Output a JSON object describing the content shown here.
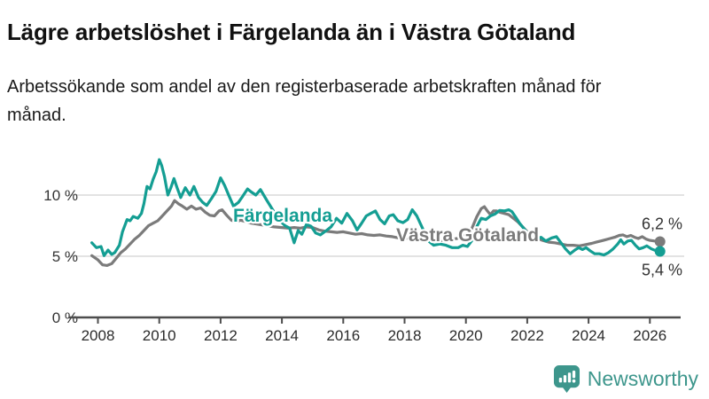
{
  "header": {
    "title": "Lägre arbetslöshet i Färgelanda än i Västra Götaland",
    "subtitle": "Arbetssökande som andel av den registerbaserade arbetskraften månad för månad."
  },
  "footer": {
    "brand": "Newsworthy",
    "brand_color": "#3d968c",
    "logo_icon": "speech-bubble-bar-chart"
  },
  "chart_data": {
    "type": "line",
    "title": "",
    "xlabel": "",
    "ylabel": "",
    "unit": "%",
    "grid": "horizontal",
    "legend_position": "inline-labels",
    "xlim": [
      2007.7,
      2027.1
    ],
    "ylim": [
      0,
      13.5
    ],
    "colors": {
      "axis": "#4d4d4d",
      "gridline": "#dadada",
      "tick_text": "#2b2b2b",
      "annotation_text": "#333333"
    },
    "yticks": [
      {
        "value": 0,
        "label": "0 %"
      },
      {
        "value": 5,
        "label": "5 %"
      },
      {
        "value": 10,
        "label": "10 %"
      }
    ],
    "xticks": [
      {
        "value": 2008,
        "label": "2008"
      },
      {
        "value": 2010,
        "label": "2010"
      },
      {
        "value": 2012,
        "label": "2012"
      },
      {
        "value": 2014,
        "label": "2014"
      },
      {
        "value": 2016,
        "label": "2016"
      },
      {
        "value": 2018,
        "label": "2018"
      },
      {
        "value": 2020,
        "label": "2020"
      },
      {
        "value": 2022,
        "label": "2022"
      },
      {
        "value": 2024,
        "label": "2024"
      },
      {
        "value": 2026,
        "label": "2026"
      }
    ],
    "series": [
      {
        "name": "Färgelanda",
        "color": "#149e93",
        "end_label": "5,4 %",
        "end_label_position": "below",
        "end_value": 5.4,
        "points": [
          [
            2007.8,
            6.1
          ],
          [
            2007.95,
            5.7
          ],
          [
            2008.1,
            5.8
          ],
          [
            2008.2,
            5.05
          ],
          [
            2008.33,
            5.5
          ],
          [
            2008.45,
            5.15
          ],
          [
            2008.55,
            5.3
          ],
          [
            2008.7,
            5.9
          ],
          [
            2008.8,
            7.0
          ],
          [
            2008.95,
            8.0
          ],
          [
            2009.05,
            7.9
          ],
          [
            2009.15,
            8.25
          ],
          [
            2009.3,
            8.1
          ],
          [
            2009.42,
            8.5
          ],
          [
            2009.5,
            9.3
          ],
          [
            2009.6,
            10.7
          ],
          [
            2009.7,
            10.5
          ],
          [
            2009.8,
            11.3
          ],
          [
            2009.9,
            11.9
          ],
          [
            2010.0,
            12.9
          ],
          [
            2010.08,
            12.4
          ],
          [
            2010.17,
            11.5
          ],
          [
            2010.28,
            10.0
          ],
          [
            2010.38,
            10.6
          ],
          [
            2010.48,
            11.35
          ],
          [
            2010.58,
            10.6
          ],
          [
            2010.7,
            9.8
          ],
          [
            2010.85,
            10.6
          ],
          [
            2011.0,
            10.0
          ],
          [
            2011.13,
            10.7
          ],
          [
            2011.28,
            9.8
          ],
          [
            2011.42,
            9.4
          ],
          [
            2011.55,
            9.15
          ],
          [
            2011.7,
            9.7
          ],
          [
            2011.85,
            10.3
          ],
          [
            2012.0,
            11.4
          ],
          [
            2012.13,
            10.8
          ],
          [
            2012.28,
            9.9
          ],
          [
            2012.42,
            9.1
          ],
          [
            2012.58,
            9.4
          ],
          [
            2012.72,
            9.9
          ],
          [
            2012.88,
            10.5
          ],
          [
            2013.0,
            10.25
          ],
          [
            2013.15,
            10.0
          ],
          [
            2013.3,
            10.45
          ],
          [
            2013.5,
            9.6
          ],
          [
            2013.7,
            8.8
          ],
          [
            2013.9,
            8.0
          ],
          [
            2014.1,
            7.5
          ],
          [
            2014.25,
            7.3
          ],
          [
            2014.4,
            6.1
          ],
          [
            2014.53,
            7.1
          ],
          [
            2014.65,
            6.8
          ],
          [
            2014.8,
            7.6
          ],
          [
            2014.95,
            7.45
          ],
          [
            2015.1,
            6.9
          ],
          [
            2015.25,
            6.75
          ],
          [
            2015.45,
            7.1
          ],
          [
            2015.6,
            7.4
          ],
          [
            2015.78,
            8.1
          ],
          [
            2015.95,
            7.7
          ],
          [
            2016.12,
            8.5
          ],
          [
            2016.3,
            7.9
          ],
          [
            2016.45,
            7.15
          ],
          [
            2016.6,
            7.7
          ],
          [
            2016.75,
            8.3
          ],
          [
            2016.9,
            8.5
          ],
          [
            2017.05,
            8.7
          ],
          [
            2017.2,
            8.0
          ],
          [
            2017.35,
            7.65
          ],
          [
            2017.5,
            8.3
          ],
          [
            2017.63,
            8.4
          ],
          [
            2017.78,
            7.9
          ],
          [
            2017.95,
            7.75
          ],
          [
            2018.1,
            8.0
          ],
          [
            2018.25,
            8.8
          ],
          [
            2018.4,
            8.3
          ],
          [
            2018.6,
            7.2
          ],
          [
            2018.8,
            6.2
          ],
          [
            2018.95,
            5.9
          ],
          [
            2019.15,
            6.0
          ],
          [
            2019.35,
            5.9
          ],
          [
            2019.55,
            5.7
          ],
          [
            2019.75,
            5.7
          ],
          [
            2019.9,
            5.9
          ],
          [
            2020.05,
            5.8
          ],
          [
            2020.2,
            6.3
          ],
          [
            2020.35,
            7.4
          ],
          [
            2020.5,
            8.1
          ],
          [
            2020.65,
            8.0
          ],
          [
            2020.8,
            8.3
          ],
          [
            2020.95,
            8.45
          ],
          [
            2021.1,
            8.75
          ],
          [
            2021.25,
            8.7
          ],
          [
            2021.4,
            8.8
          ],
          [
            2021.5,
            8.65
          ],
          [
            2021.62,
            8.2
          ],
          [
            2021.75,
            7.7
          ],
          [
            2021.88,
            7.3
          ],
          [
            2022.0,
            6.9
          ],
          [
            2022.15,
            6.55
          ],
          [
            2022.3,
            6.4
          ],
          [
            2022.45,
            6.55
          ],
          [
            2022.6,
            6.25
          ],
          [
            2022.8,
            6.5
          ],
          [
            2022.95,
            6.6
          ],
          [
            2023.1,
            6.1
          ],
          [
            2023.25,
            5.6
          ],
          [
            2023.4,
            5.2
          ],
          [
            2023.55,
            5.5
          ],
          [
            2023.68,
            5.7
          ],
          [
            2023.8,
            5.55
          ],
          [
            2023.92,
            5.7
          ],
          [
            2024.05,
            5.45
          ],
          [
            2024.2,
            5.2
          ],
          [
            2024.35,
            5.2
          ],
          [
            2024.5,
            5.1
          ],
          [
            2024.65,
            5.3
          ],
          [
            2024.8,
            5.6
          ],
          [
            2024.95,
            6.0
          ],
          [
            2025.05,
            6.35
          ],
          [
            2025.15,
            6.0
          ],
          [
            2025.28,
            6.25
          ],
          [
            2025.4,
            6.3
          ],
          [
            2025.53,
            5.9
          ],
          [
            2025.65,
            5.6
          ],
          [
            2025.78,
            5.7
          ],
          [
            2025.9,
            5.85
          ],
          [
            2026.05,
            5.6
          ],
          [
            2026.2,
            5.45
          ],
          [
            2026.33,
            5.4
          ]
        ]
      },
      {
        "name": "Västra Götaland",
        "color": "#7b7b7b",
        "end_label": "6,2 %",
        "end_label_position": "above",
        "end_value": 6.2,
        "points": [
          [
            2007.8,
            5.05
          ],
          [
            2008.0,
            4.7
          ],
          [
            2008.15,
            4.3
          ],
          [
            2008.3,
            4.25
          ],
          [
            2008.45,
            4.4
          ],
          [
            2008.6,
            4.85
          ],
          [
            2008.75,
            5.3
          ],
          [
            2008.9,
            5.6
          ],
          [
            2009.05,
            6.0
          ],
          [
            2009.2,
            6.4
          ],
          [
            2009.35,
            6.7
          ],
          [
            2009.5,
            7.1
          ],
          [
            2009.65,
            7.5
          ],
          [
            2009.8,
            7.7
          ],
          [
            2009.95,
            7.9
          ],
          [
            2010.1,
            8.3
          ],
          [
            2010.25,
            8.7
          ],
          [
            2010.4,
            9.1
          ],
          [
            2010.5,
            9.55
          ],
          [
            2010.62,
            9.3
          ],
          [
            2010.75,
            9.1
          ],
          [
            2010.9,
            8.85
          ],
          [
            2011.05,
            9.1
          ],
          [
            2011.2,
            8.85
          ],
          [
            2011.35,
            8.95
          ],
          [
            2011.5,
            8.6
          ],
          [
            2011.65,
            8.35
          ],
          [
            2011.8,
            8.3
          ],
          [
            2011.95,
            8.7
          ],
          [
            2012.05,
            8.8
          ],
          [
            2012.2,
            8.35
          ],
          [
            2012.35,
            7.95
          ],
          [
            2012.5,
            7.8
          ],
          [
            2012.65,
            7.95
          ],
          [
            2012.8,
            7.85
          ],
          [
            2013.0,
            7.7
          ],
          [
            2013.25,
            7.6
          ],
          [
            2013.5,
            7.5
          ],
          [
            2013.75,
            7.4
          ],
          [
            2014.0,
            7.35
          ],
          [
            2014.2,
            7.3
          ],
          [
            2014.4,
            7.35
          ],
          [
            2014.6,
            7.3
          ],
          [
            2014.8,
            7.4
          ],
          [
            2015.0,
            7.35
          ],
          [
            2015.2,
            7.15
          ],
          [
            2015.4,
            7.05
          ],
          [
            2015.6,
            7.0
          ],
          [
            2015.8,
            6.95
          ],
          [
            2016.0,
            7.0
          ],
          [
            2016.2,
            6.9
          ],
          [
            2016.4,
            6.8
          ],
          [
            2016.6,
            6.85
          ],
          [
            2016.8,
            6.75
          ],
          [
            2017.0,
            6.7
          ],
          [
            2017.2,
            6.75
          ],
          [
            2017.4,
            6.65
          ],
          [
            2017.6,
            6.6
          ],
          [
            2017.8,
            6.5
          ],
          [
            2018.0,
            6.5
          ],
          [
            2018.3,
            6.4
          ],
          [
            2018.6,
            6.3
          ],
          [
            2018.9,
            6.3
          ],
          [
            2019.2,
            6.3
          ],
          [
            2019.5,
            6.35
          ],
          [
            2019.8,
            6.5
          ],
          [
            2020.05,
            6.8
          ],
          [
            2020.2,
            7.3
          ],
          [
            2020.35,
            8.2
          ],
          [
            2020.5,
            8.9
          ],
          [
            2020.6,
            9.05
          ],
          [
            2020.7,
            8.7
          ],
          [
            2020.8,
            8.4
          ],
          [
            2020.9,
            8.7
          ],
          [
            2021.0,
            8.7
          ],
          [
            2021.1,
            8.6
          ],
          [
            2021.25,
            8.5
          ],
          [
            2021.4,
            8.4
          ],
          [
            2021.55,
            8.1
          ],
          [
            2021.7,
            7.8
          ],
          [
            2021.85,
            7.4
          ],
          [
            2022.0,
            7.0
          ],
          [
            2022.15,
            6.6
          ],
          [
            2022.3,
            6.5
          ],
          [
            2022.5,
            6.3
          ],
          [
            2022.7,
            6.15
          ],
          [
            2022.9,
            6.1
          ],
          [
            2023.1,
            6.0
          ],
          [
            2023.3,
            5.9
          ],
          [
            2023.5,
            5.9
          ],
          [
            2023.7,
            5.85
          ],
          [
            2023.9,
            5.95
          ],
          [
            2024.1,
            6.05
          ],
          [
            2024.25,
            6.15
          ],
          [
            2024.4,
            6.25
          ],
          [
            2024.55,
            6.35
          ],
          [
            2024.7,
            6.45
          ],
          [
            2024.85,
            6.55
          ],
          [
            2025.0,
            6.7
          ],
          [
            2025.12,
            6.75
          ],
          [
            2025.25,
            6.6
          ],
          [
            2025.38,
            6.7
          ],
          [
            2025.5,
            6.55
          ],
          [
            2025.62,
            6.45
          ],
          [
            2025.75,
            6.6
          ],
          [
            2025.88,
            6.4
          ],
          [
            2026.0,
            6.3
          ],
          [
            2026.15,
            6.25
          ],
          [
            2026.33,
            6.2
          ]
        ]
      }
    ]
  }
}
